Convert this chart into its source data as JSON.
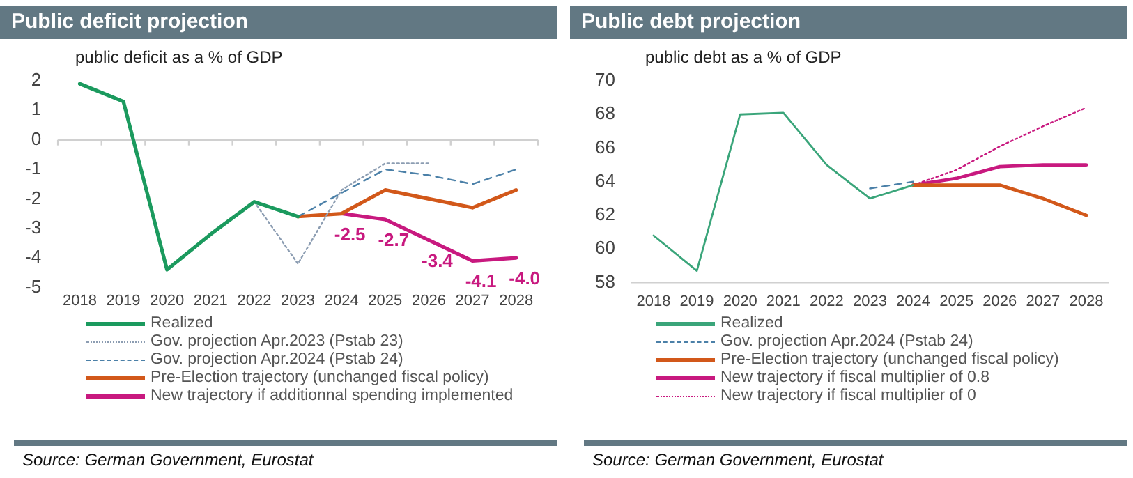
{
  "chart_data": [
    {
      "type": "line",
      "title": "Public deficit projection",
      "subtitle": "public deficit as a % of GDP",
      "categories": [
        "2018",
        "2019",
        "2020",
        "2021",
        "2022",
        "2023",
        "2024",
        "2025",
        "2026",
        "2027",
        "2028"
      ],
      "series": [
        {
          "name": "Realized",
          "color": "#1b9a5e",
          "line_style": "solid",
          "values": [
            1.9,
            1.3,
            -4.4,
            -3.2,
            -2.1,
            -2.6,
            null,
            null,
            null,
            null,
            null
          ]
        },
        {
          "name": "Gov. projection Apr.2023 (Pstab 23)",
          "color": "#8c9db2",
          "line_style": "dotted",
          "values": [
            null,
            null,
            null,
            null,
            -2.1,
            -4.2,
            -1.7,
            -0.8,
            -0.8,
            null,
            null
          ]
        },
        {
          "name": "Gov. projection Apr.2024 (Pstab 24)",
          "color": "#4b80a8",
          "line_style": "dashed",
          "values": [
            null,
            null,
            null,
            null,
            null,
            -2.6,
            -1.8,
            -1.0,
            -1.2,
            -1.5,
            -1.0
          ]
        },
        {
          "name": "Pre-Election trajectory (unchanged fiscal policy)",
          "color": "#d2581a",
          "line_style": "solid",
          "values": [
            null,
            null,
            null,
            null,
            null,
            -2.6,
            -2.5,
            -1.7,
            -2.0,
            -2.3,
            -1.7
          ]
        },
        {
          "name": "New trajectory if additionnal spending implemented",
          "color": "#c8197f",
          "line_style": "solid",
          "values": [
            null,
            null,
            null,
            null,
            null,
            null,
            -2.5,
            -2.7,
            -3.4,
            -4.1,
            -4.0
          ],
          "value_labels": [
            null,
            null,
            null,
            null,
            null,
            null,
            "-2.5",
            "-2.7",
            "-3.4",
            "-4.1",
            "-4.0"
          ]
        }
      ],
      "ylim": [
        -5,
        2
      ],
      "yticks": [
        -5,
        -4,
        -3,
        -2,
        -1,
        0,
        1,
        2
      ],
      "grid": false,
      "legend": "bottom",
      "marker": "none",
      "ref_lines": [
        {
          "axis": "y",
          "value": 0,
          "color": "#d0d0d0"
        }
      ],
      "annotations": [
        "Source: German Government, Eurostat"
      ]
    },
    {
      "type": "line",
      "title": "Public debt projection",
      "subtitle": "public debt as a % of GDP",
      "categories": [
        "2018",
        "2019",
        "2020",
        "2021",
        "2022",
        "2023",
        "2024",
        "2025",
        "2026",
        "2027",
        "2028"
      ],
      "series": [
        {
          "name": "Realized",
          "color": "#3aa57a",
          "line_style": "solid",
          "values": [
            60.8,
            58.7,
            68.0,
            68.1,
            65.0,
            63.0,
            63.8,
            null,
            null,
            null,
            null
          ]
        },
        {
          "name": "Gov. projection Apr.2024 (Pstab 24)",
          "color": "#4b80a8",
          "line_style": "dashed",
          "values": [
            null,
            null,
            null,
            null,
            null,
            63.6,
            64.0,
            null,
            null,
            null,
            null
          ]
        },
        {
          "name": "Pre-Election trajectory (unchanged fiscal policy)",
          "color": "#d2581a",
          "line_style": "solid",
          "values": [
            null,
            null,
            null,
            null,
            null,
            null,
            63.8,
            63.8,
            63.8,
            63.0,
            62.0
          ]
        },
        {
          "name": "New trajectory if fiscal multiplier of 0.8",
          "color": "#c8197f",
          "line_style": "solid",
          "values": [
            null,
            null,
            null,
            null,
            null,
            null,
            63.8,
            64.2,
            64.9,
            65.0,
            65.0
          ]
        },
        {
          "name": "New trajectory if fiscal multiplier of 0",
          "color": "#c8197f",
          "line_style": "dotted",
          "values": [
            null,
            null,
            null,
            null,
            null,
            null,
            63.8,
            64.7,
            66.1,
            67.3,
            68.4
          ]
        }
      ],
      "ylim": [
        58,
        70
      ],
      "yticks": [
        58,
        60,
        62,
        64,
        66,
        68,
        70
      ],
      "grid": false,
      "legend": "bottom",
      "marker": "none",
      "annotations": [
        "Source: German Government, Eurostat"
      ]
    }
  ]
}
